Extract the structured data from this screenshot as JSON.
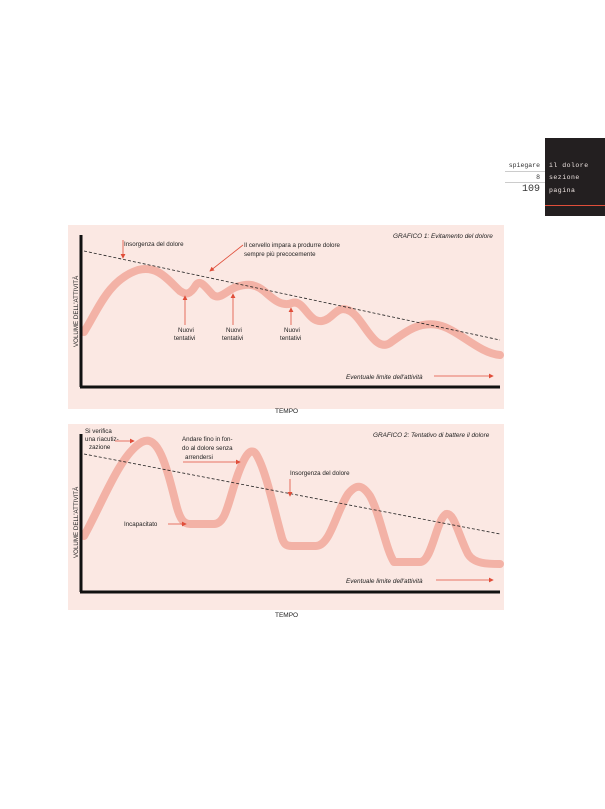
{
  "header": {
    "rows": [
      {
        "left": "spiegare",
        "right": "il dolore"
      },
      {
        "left": "8",
        "right": "sezione"
      },
      {
        "left": "109",
        "right": "pagina"
      }
    ]
  },
  "chart1": {
    "title": "GRAFICO 1: Evitamento del dolore",
    "ylabel": "VOLUME DELL'ATTIVITÀ",
    "xlabel": "TEMPO",
    "annotations": {
      "onset": "Insorgenza del dolore",
      "brain_l1": "Il cervello impara a produrre dolore",
      "brain_l2": "sempre più precocemente",
      "try1_l1": "Nuovi",
      "try1_l2": "tentativi",
      "try2_l1": "Nuovi",
      "try2_l2": "tentativi",
      "try3_l1": "Nuovi",
      "try3_l2": "tentativi",
      "limit": "Eventuale limite dell'attività"
    }
  },
  "chart2": {
    "title": "GRAFICO 2: Tentativo di battere il dolore",
    "ylabel": "VOLUME DELL'ATTIVITÀ",
    "xlabel": "TEMPO",
    "annotations": {
      "relapse_l1": "Si verifica",
      "relapse_l2": "una riacutiz-",
      "relapse_l3": "zazione",
      "push_l1": "Andare fino in fon-",
      "push_l2": "do al dolore senza",
      "push_l3": "arrendersi",
      "onset": "Insorgenza del dolore",
      "incapacitated": "Incapacitato",
      "limit": "Eventuale limite dell'attività"
    }
  },
  "colors": {
    "panel": "#fbe8e3",
    "curve": "#f3b2a6",
    "arrow": "#e04e3a",
    "axis": "#111111",
    "tab": "#231f20"
  }
}
